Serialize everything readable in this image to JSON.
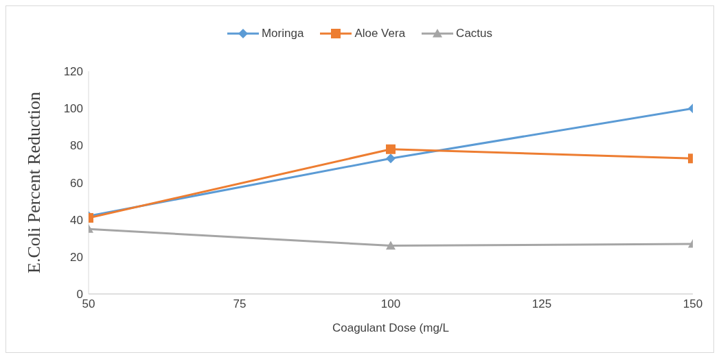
{
  "chart_data": {
    "type": "line",
    "xlabel": "Coagulant Dose (mg/L",
    "ylabel": "E.Coli Percent Reduction",
    "x": [
      50,
      100,
      150
    ],
    "series": [
      {
        "name": "Moringa",
        "color": "#5b9bd5",
        "marker": "diamond",
        "values": [
          42,
          73,
          100
        ]
      },
      {
        "name": "Aloe Vera",
        "color": "#ed7d31",
        "marker": "square",
        "values": [
          41,
          78,
          73
        ]
      },
      {
        "name": "Cactus",
        "color": "#a5a5a5",
        "marker": "triangle",
        "values": [
          35,
          26,
          27
        ]
      }
    ],
    "xlim": [
      50,
      150
    ],
    "xticks": [
      50,
      75,
      100,
      125,
      150
    ],
    "ylim": [
      0,
      120
    ],
    "yticks": [
      0,
      20,
      40,
      60,
      80,
      100,
      120
    ],
    "grid": false,
    "legend": "top"
  }
}
